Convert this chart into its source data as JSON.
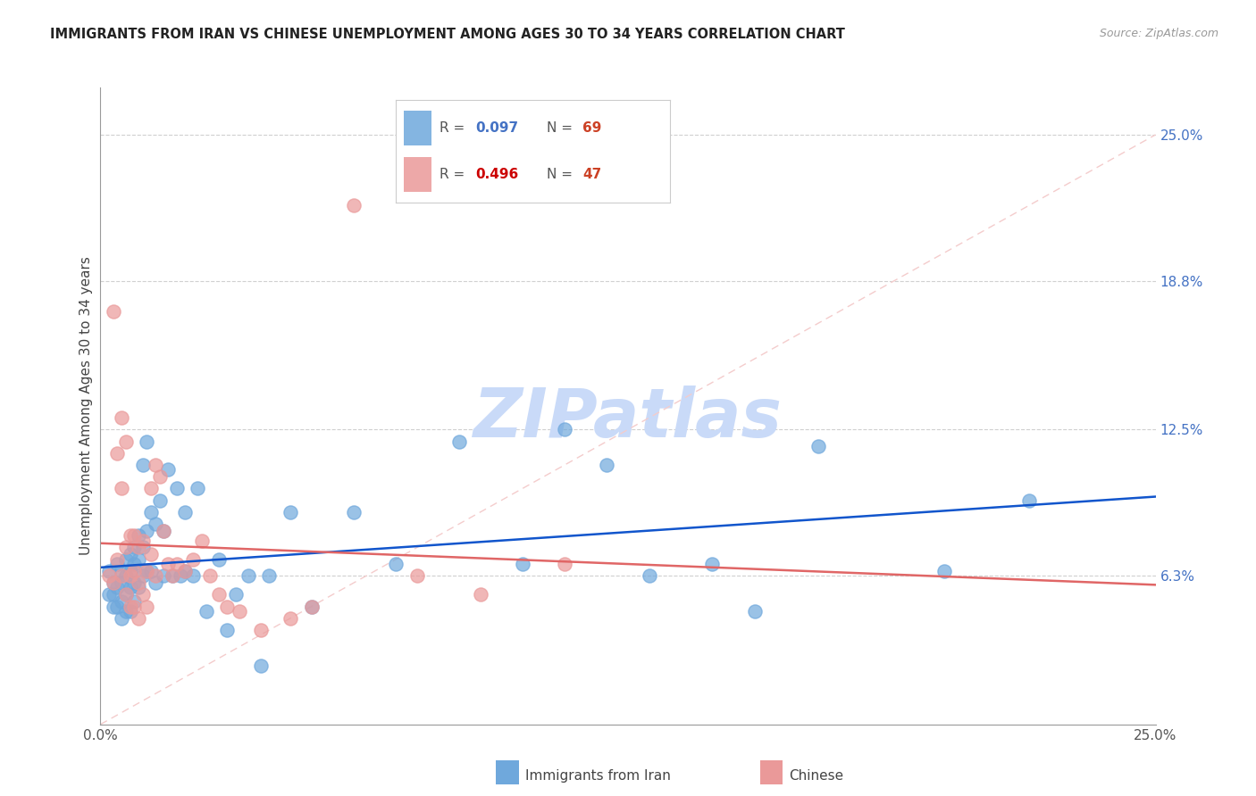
{
  "title": "IMMIGRANTS FROM IRAN VS CHINESE UNEMPLOYMENT AMONG AGES 30 TO 34 YEARS CORRELATION CHART",
  "source": "Source: ZipAtlas.com",
  "ylabel": "Unemployment Among Ages 30 to 34 years",
  "xlim": [
    0.0,
    0.25
  ],
  "ylim": [
    0.0,
    0.27
  ],
  "ytick_right_labels": [
    "25.0%",
    "18.8%",
    "12.5%",
    "6.3%"
  ],
  "ytick_right_values": [
    0.25,
    0.188,
    0.125,
    0.063
  ],
  "color_iran": "#6fa8dc",
  "color_chinese": "#ea9999",
  "trendline_iran_color": "#1155cc",
  "trendline_chinese_color": "#e06666",
  "diagonal_color": "#f4cccc",
  "watermark": "ZIPatlas",
  "watermark_color": "#c9daf8",
  "iran_R": "0.097",
  "iran_N": "69",
  "chinese_R": "0.496",
  "chinese_N": "47",
  "iran_x": [
    0.002,
    0.002,
    0.003,
    0.003,
    0.003,
    0.004,
    0.004,
    0.004,
    0.005,
    0.005,
    0.005,
    0.005,
    0.006,
    0.006,
    0.006,
    0.006,
    0.007,
    0.007,
    0.007,
    0.007,
    0.008,
    0.008,
    0.008,
    0.008,
    0.009,
    0.009,
    0.009,
    0.01,
    0.01,
    0.01,
    0.011,
    0.011,
    0.011,
    0.012,
    0.012,
    0.013,
    0.013,
    0.014,
    0.015,
    0.015,
    0.016,
    0.017,
    0.018,
    0.019,
    0.02,
    0.02,
    0.022,
    0.023,
    0.025,
    0.028,
    0.03,
    0.032,
    0.035,
    0.038,
    0.04,
    0.045,
    0.05,
    0.06,
    0.07,
    0.085,
    0.1,
    0.11,
    0.12,
    0.13,
    0.145,
    0.155,
    0.17,
    0.2,
    0.22
  ],
  "iran_y": [
    0.065,
    0.055,
    0.06,
    0.055,
    0.05,
    0.068,
    0.058,
    0.05,
    0.065,
    0.06,
    0.052,
    0.045,
    0.07,
    0.063,
    0.055,
    0.048,
    0.072,
    0.065,
    0.058,
    0.048,
    0.075,
    0.068,
    0.06,
    0.052,
    0.08,
    0.07,
    0.058,
    0.11,
    0.075,
    0.063,
    0.12,
    0.082,
    0.065,
    0.09,
    0.065,
    0.085,
    0.06,
    0.095,
    0.082,
    0.063,
    0.108,
    0.063,
    0.1,
    0.063,
    0.09,
    0.065,
    0.063,
    0.1,
    0.048,
    0.07,
    0.04,
    0.055,
    0.063,
    0.025,
    0.063,
    0.09,
    0.05,
    0.09,
    0.068,
    0.12,
    0.068,
    0.125,
    0.11,
    0.063,
    0.068,
    0.048,
    0.118,
    0.065,
    0.095
  ],
  "chinese_x": [
    0.002,
    0.003,
    0.003,
    0.004,
    0.004,
    0.005,
    0.005,
    0.005,
    0.006,
    0.006,
    0.006,
    0.007,
    0.007,
    0.007,
    0.008,
    0.008,
    0.008,
    0.009,
    0.009,
    0.009,
    0.01,
    0.01,
    0.011,
    0.011,
    0.012,
    0.012,
    0.013,
    0.013,
    0.014,
    0.015,
    0.016,
    0.017,
    0.018,
    0.02,
    0.022,
    0.024,
    0.026,
    0.028,
    0.03,
    0.033,
    0.038,
    0.045,
    0.05,
    0.06,
    0.075,
    0.09,
    0.11
  ],
  "chinese_y": [
    0.063,
    0.175,
    0.06,
    0.115,
    0.07,
    0.13,
    0.1,
    0.063,
    0.12,
    0.075,
    0.055,
    0.08,
    0.063,
    0.05,
    0.08,
    0.065,
    0.05,
    0.075,
    0.06,
    0.045,
    0.078,
    0.055,
    0.065,
    0.05,
    0.072,
    0.1,
    0.11,
    0.063,
    0.105,
    0.082,
    0.068,
    0.063,
    0.068,
    0.065,
    0.07,
    0.078,
    0.063,
    0.055,
    0.05,
    0.048,
    0.04,
    0.045,
    0.05,
    0.22,
    0.063,
    0.055,
    0.068
  ]
}
